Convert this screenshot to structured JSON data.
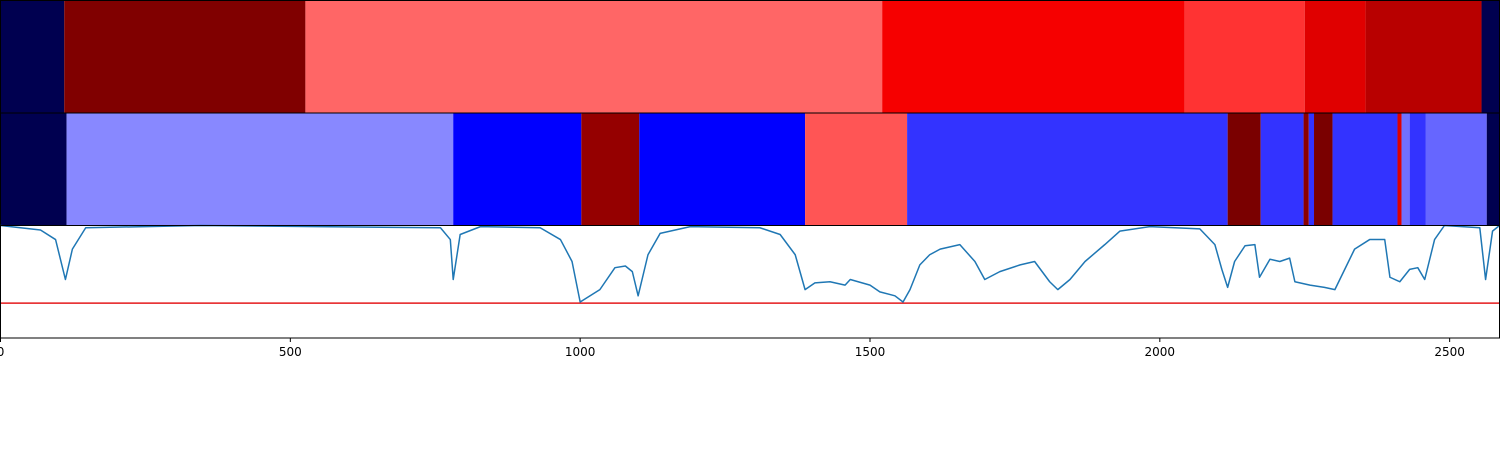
{
  "chart_data": [
    {
      "type": "strip",
      "xlim": [
        0,
        2586
      ],
      "bins": [
        0,
        110,
        526,
        1521,
        2043,
        2250,
        2355,
        2555,
        2586
      ],
      "colors": [
        "#000050",
        "#800000",
        "#ff6666",
        "#f60000",
        "#ff3333",
        "#e00000",
        "#b80000",
        "#000050"
      ]
    },
    {
      "type": "strip",
      "xlim": [
        0,
        2586
      ],
      "bins": [
        0,
        114,
        781,
        1002,
        1102,
        1388,
        1564,
        2117,
        2174,
        2248,
        2257,
        2266,
        2298,
        2410,
        2417,
        2431,
        2459,
        2564,
        2586
      ],
      "colors": [
        "#000050",
        "#8888ff",
        "#0000ff",
        "#950000",
        "#0000ff",
        "#ff5555",
        "#3333ff",
        "#7a0000",
        "#3333ff",
        "#8b0000",
        "#3333ff",
        "#7a0000",
        "#3333ff",
        "#dd0000",
        "#7070ff",
        "#3333ff",
        "#6666ff",
        "#000050"
      ]
    },
    {
      "type": "line",
      "xlim": [
        0,
        2586
      ],
      "ylim": [
        0,
        1
      ],
      "xticks": [
        0,
        500,
        1000,
        1500,
        2000,
        2500
      ],
      "color": "#1f77b4",
      "threshold": 0.31,
      "threshold_color": "#e41a1c",
      "x": [
        0,
        69,
        95,
        112,
        124,
        147,
        345,
        759,
        776,
        781,
        793,
        828,
        931,
        966,
        986,
        1000,
        1034,
        1060,
        1078,
        1090,
        1100,
        1117,
        1138,
        1190,
        1310,
        1345,
        1371,
        1388,
        1405,
        1431,
        1457,
        1466,
        1500,
        1517,
        1543,
        1557,
        1569,
        1586,
        1603,
        1621,
        1655,
        1681,
        1698,
        1724,
        1759,
        1784,
        1810,
        1824,
        1845,
        1871,
        1905,
        1931,
        1983,
        2069,
        2095,
        2107,
        2117,
        2129,
        2147,
        2164,
        2172,
        2190,
        2207,
        2224,
        2233,
        2259,
        2284,
        2302,
        2319,
        2336,
        2362,
        2388,
        2397,
        2414,
        2431,
        2445,
        2457,
        2474,
        2491,
        2552,
        2562,
        2574,
        2586
      ],
      "values": [
        1.0,
        0.96,
        0.875,
        0.52,
        0.79,
        0.98,
        1.0,
        0.98,
        0.875,
        0.52,
        0.92,
        0.99,
        0.98,
        0.875,
        0.68,
        0.32,
        0.43,
        0.625,
        0.64,
        0.59,
        0.375,
        0.74,
        0.93,
        0.99,
        0.98,
        0.92,
        0.74,
        0.43,
        0.49,
        0.5,
        0.47,
        0.52,
        0.47,
        0.41,
        0.375,
        0.32,
        0.43,
        0.65,
        0.74,
        0.79,
        0.83,
        0.68,
        0.52,
        0.59,
        0.65,
        0.68,
        0.5,
        0.43,
        0.52,
        0.68,
        0.83,
        0.95,
        0.99,
        0.97,
        0.83,
        0.61,
        0.45,
        0.68,
        0.82,
        0.83,
        0.54,
        0.7,
        0.68,
        0.71,
        0.5,
        0.47,
        0.45,
        0.43,
        0.61,
        0.79,
        0.875,
        0.875,
        0.54,
        0.5,
        0.61,
        0.625,
        0.52,
        0.875,
        1.0,
        0.98,
        0.52,
        0.95,
        1.0
      ]
    }
  ]
}
